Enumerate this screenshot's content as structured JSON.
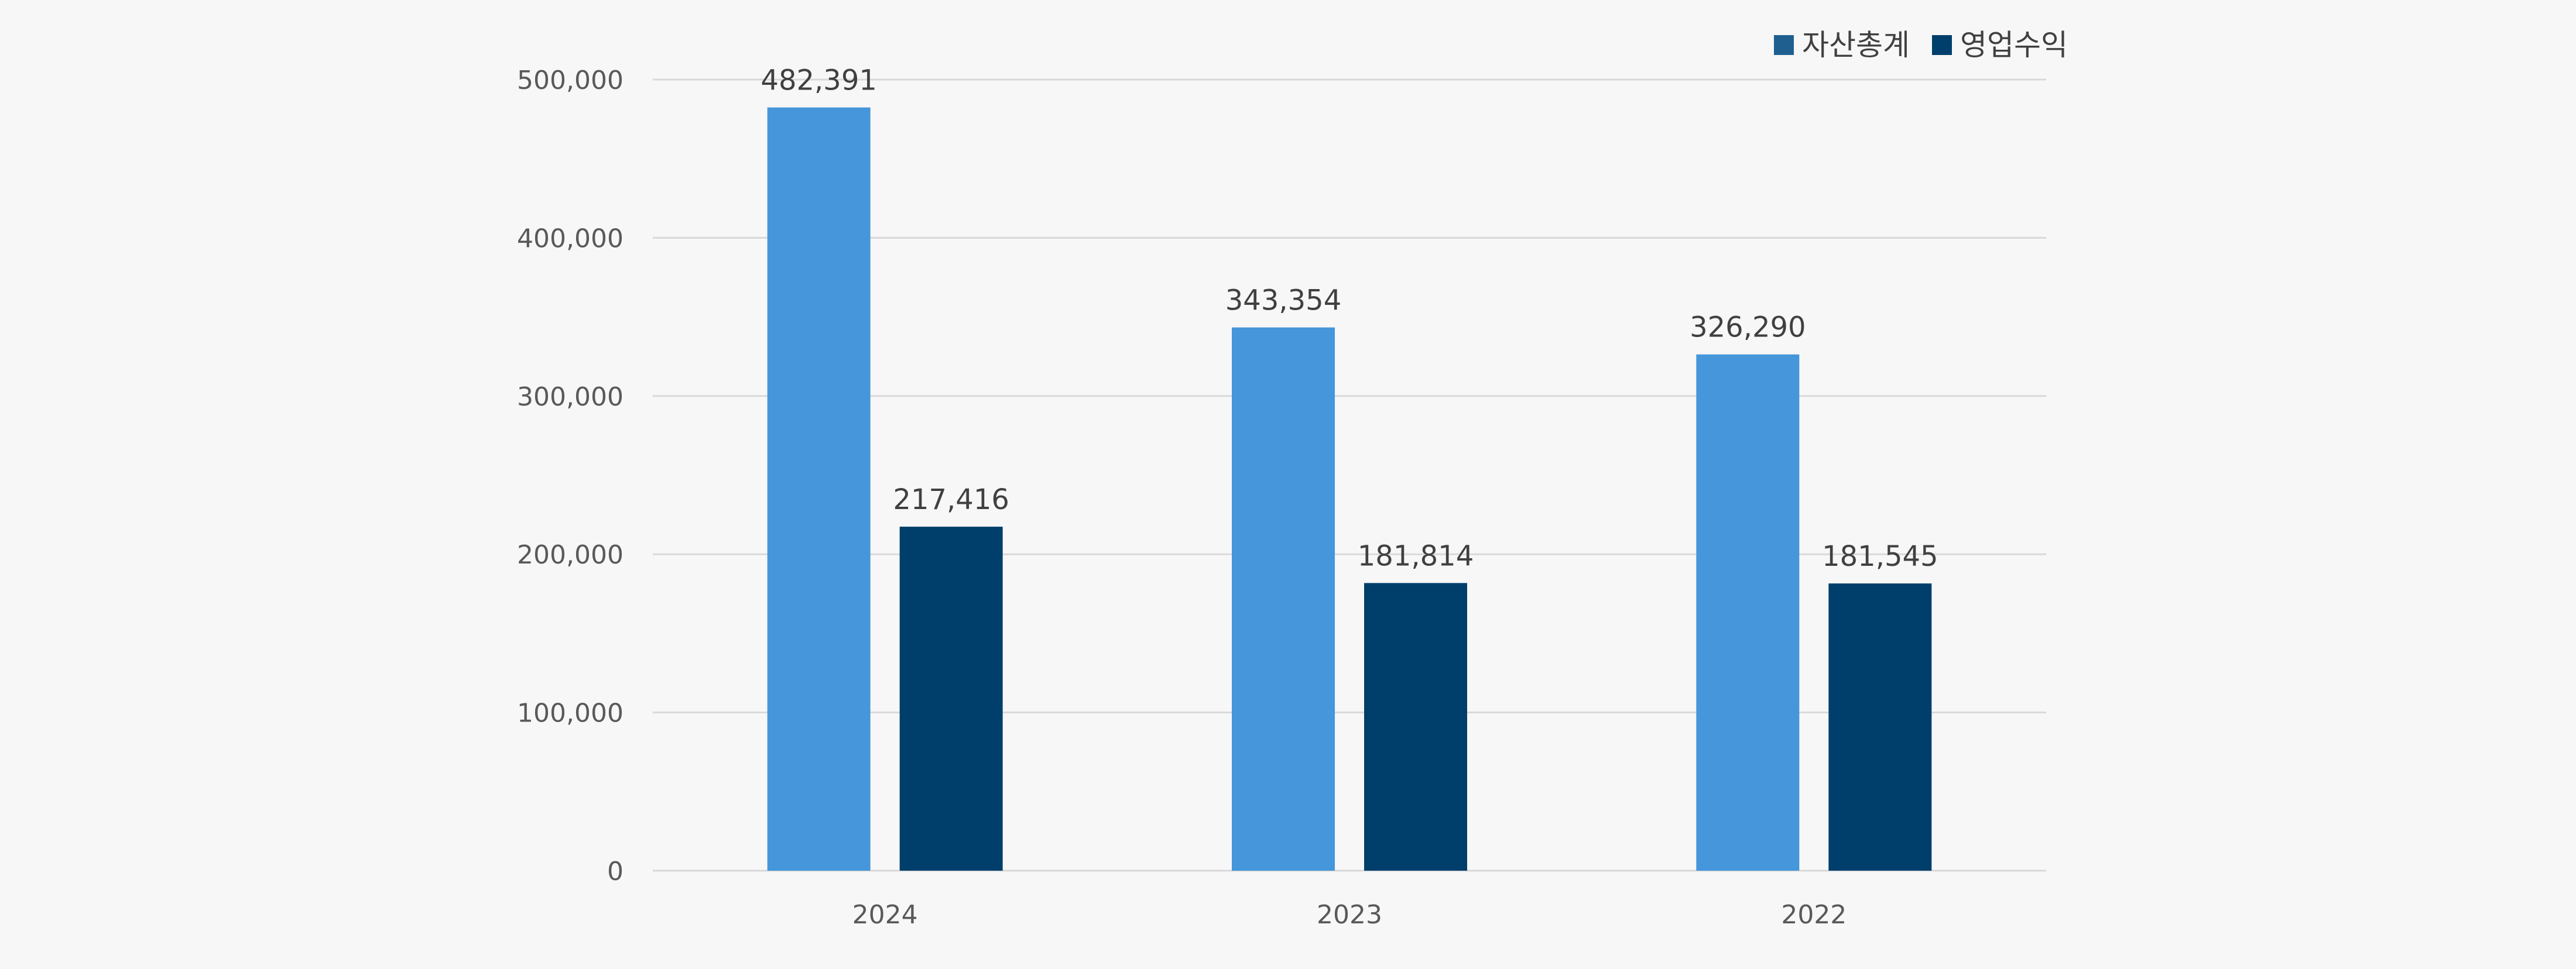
{
  "chart_data": {
    "type": "bar",
    "categories": [
      "2024",
      "2023",
      "2022"
    ],
    "series": [
      {
        "name": "자산총계",
        "values": [
          482391,
          343354,
          326290
        ],
        "color": "#4596db",
        "legend_color": "#1f5f8f"
      },
      {
        "name": "영업수익",
        "values": [
          217416,
          181814,
          181545
        ],
        "color": "#003f6b",
        "legend_color": "#003f6b"
      }
    ],
    "data_labels": [
      [
        "482,391",
        "343,354",
        "326,290"
      ],
      [
        "217,416",
        "181,814",
        "181,545"
      ]
    ],
    "yticks": [
      0,
      100000,
      200000,
      300000,
      400000,
      500000
    ],
    "ytick_labels": [
      "0",
      "100,000",
      "200,000",
      "300,000",
      "400,000",
      "500,000"
    ],
    "ylim": [
      0,
      500000
    ],
    "grid": true,
    "legend_position": "top-right",
    "title": "",
    "xlabel": "",
    "ylabel": ""
  }
}
